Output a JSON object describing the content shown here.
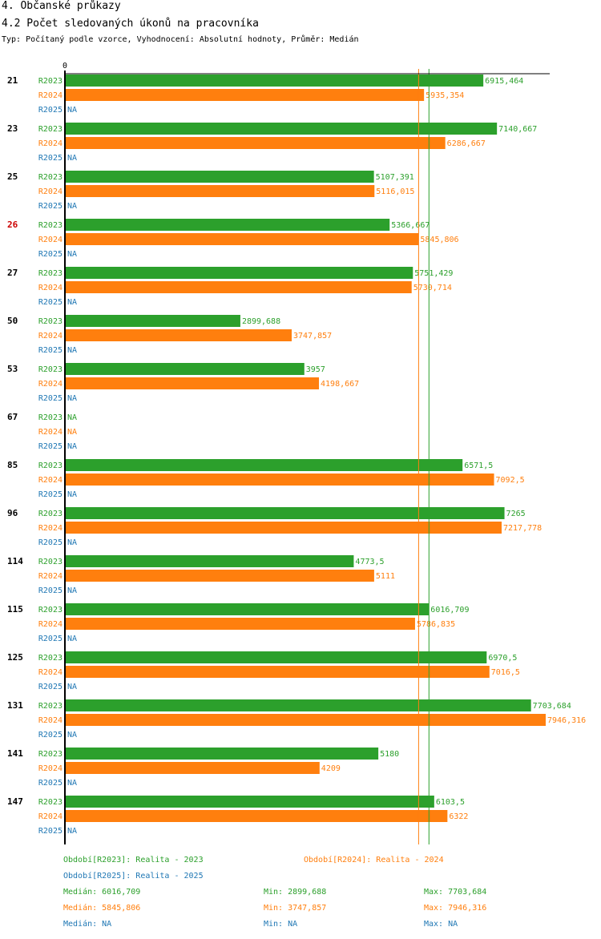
{
  "title": "4. Občanské průkazy",
  "subtitle": "4.2 Počet sledovaných úkonů na pracovníka",
  "meta": "Typ: Počítaný podle vzorce, Vyhodnocení: Absolutní hodnoty, Průměr: Medián",
  "colors": {
    "R2023": "#2ca02c",
    "R2024": "#ff7f0e",
    "R2025": "#1f77b4",
    "highlight": "#cc0000"
  },
  "chart_data": {
    "type": "bar",
    "orientation": "horizontal",
    "axis_zero_label": "0",
    "xlim": [
      0,
      7946.316
    ],
    "na_label": "NA",
    "highlight_category": "26",
    "categories": [
      "21",
      "23",
      "25",
      "26",
      "27",
      "50",
      "53",
      "67",
      "85",
      "96",
      "114",
      "115",
      "125",
      "131",
      "141",
      "147"
    ],
    "series": [
      {
        "name": "R2023",
        "values": [
          6915.464,
          7140.667,
          5107.391,
          5366.667,
          5751.429,
          2899.688,
          3957,
          null,
          6571.5,
          7265,
          4773.5,
          6016.709,
          6970.5,
          7703.684,
          5180,
          6103.5
        ],
        "labels": [
          "6915,464",
          "7140,667",
          "5107,391",
          "5366,667",
          "5751,429",
          "2899,688",
          "3957",
          "NA",
          "6571,5",
          "7265",
          "4773,5",
          "6016,709",
          "6970,5",
          "7703,684",
          "5180",
          "6103,5"
        ]
      },
      {
        "name": "R2024",
        "values": [
          5935.354,
          6286.667,
          5116.015,
          5845.806,
          5730.714,
          3747.857,
          4198.667,
          null,
          7092.5,
          7217.778,
          5111,
          5786.835,
          7016.5,
          7946.316,
          4209,
          6322
        ],
        "labels": [
          "5935,354",
          "6286,667",
          "5116,015",
          "5845,806",
          "5730,714",
          "3747,857",
          "4198,667",
          "NA",
          "7092,5",
          "7217,778",
          "5111",
          "5786,835",
          "7016,5",
          "7946,316",
          "4209",
          "6322"
        ]
      },
      {
        "name": "R2025",
        "values": [
          null,
          null,
          null,
          null,
          null,
          null,
          null,
          null,
          null,
          null,
          null,
          null,
          null,
          null,
          null,
          null
        ],
        "labels": [
          "NA",
          "NA",
          "NA",
          "NA",
          "NA",
          "NA",
          "NA",
          "NA",
          "NA",
          "NA",
          "NA",
          "NA",
          "NA",
          "NA",
          "NA",
          "NA"
        ]
      }
    ],
    "reference_lines": [
      {
        "series": "R2023",
        "value": 6016.709
      },
      {
        "series": "R2024",
        "value": 5845.806
      }
    ]
  },
  "legend": {
    "period_2023": "Období[R2023]: Realita - 2023",
    "period_2024": "Období[R2024]: Realita - 2024",
    "period_2025": "Období[R2025]: Realita - 2025",
    "stats_2023": {
      "median": "Medián: 6016,709",
      "min": "Min: 2899,688",
      "max": "Max: 7703,684"
    },
    "stats_2024": {
      "median": "Medián: 5845,806",
      "min": "Min: 3747,857",
      "max": "Max: 7946,316"
    },
    "stats_2025": {
      "median": "Medián: NA",
      "min": "Min: NA",
      "max": "Max: NA"
    }
  }
}
